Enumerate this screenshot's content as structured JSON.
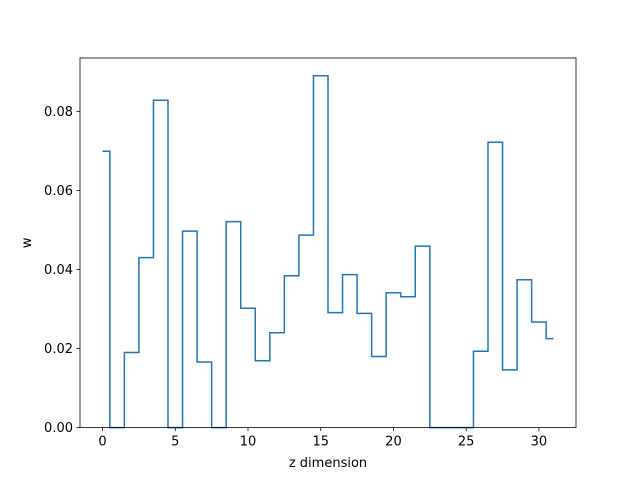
{
  "chart_data": {
    "type": "line",
    "drawstyle": "steps-mid",
    "xlabel": "z dimension",
    "ylabel": "w",
    "xlim": [
      -1.55,
      32.55
    ],
    "ylim": [
      0,
      0.0935
    ],
    "x_ticks": [
      0,
      5,
      10,
      15,
      20,
      25,
      30
    ],
    "x_tick_labels": [
      "0",
      "5",
      "10",
      "15",
      "20",
      "25",
      "30"
    ],
    "y_ticks": [
      0.0,
      0.02,
      0.04,
      0.06,
      0.08
    ],
    "y_tick_labels": [
      "0.00",
      "0.02",
      "0.04",
      "0.06",
      "0.08"
    ],
    "grid": false,
    "line_color": "#1f77b4",
    "series": [
      {
        "x": [
          0,
          1,
          2,
          3,
          4,
          5,
          6,
          7,
          8,
          9,
          10,
          11,
          12,
          13,
          14,
          15,
          16,
          17,
          18,
          19,
          20,
          21,
          22,
          23,
          24,
          25,
          26,
          27,
          28,
          29,
          30,
          31
        ],
        "values": [
          0.0699,
          0.0,
          0.019,
          0.043,
          0.0828,
          0.0,
          0.0497,
          0.0166,
          0.0,
          0.0521,
          0.0302,
          0.0169,
          0.024,
          0.0384,
          0.0487,
          0.089,
          0.0291,
          0.0387,
          0.0289,
          0.018,
          0.0341,
          0.0331,
          0.0459,
          0.0,
          0.0,
          0.0,
          0.0193,
          0.0722,
          0.0146,
          0.0374,
          0.0267,
          0.0225
        ]
      }
    ]
  }
}
